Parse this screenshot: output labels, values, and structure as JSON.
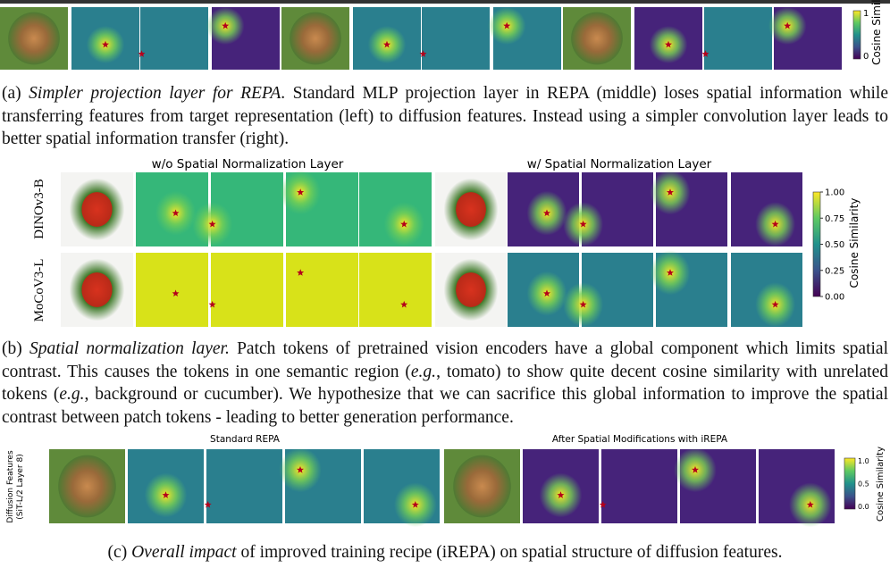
{
  "panel_a": {
    "colorbar": {
      "label": "Cosine Similar",
      "ticks": [
        "1",
        "0"
      ]
    },
    "caption": [
      "(a) ",
      "Simpler projection layer for REPA",
      ". Standard MLP projection layer in REPA (middle) loses spatial information while transferring features from target representation (left) to diffusion features.  Instead using a simpler convolution layer leads to better spatial information transfer (right)."
    ]
  },
  "panel_b": {
    "titles": [
      "w/o Spatial Normalization Layer",
      "w/ Spatial Normalization Layer"
    ],
    "rows": [
      "DINOv3-B",
      "MoCoV3-L"
    ],
    "colorbar": {
      "label": "Cosine Similarity",
      "ticks": [
        "1.00",
        "0.75",
        "0.50",
        "0.25",
        "0.00"
      ]
    },
    "caption": [
      "(b) ",
      "Spatial normalization layer.",
      " Patch tokens of pretrained vision encoders have a global component which limits spatial contrast. This causes the tokens in one semantic region (",
      "e.g.",
      ", tomato) to show quite decent cosine similarity with unrelated tokens (",
      "e.g.",
      ", background or cucumber). We hypothesize that we can sacrifice this global information to improve the spatial contrast between patch tokens - leading to better generation performance."
    ]
  },
  "panel_c": {
    "titles": [
      "Standard REPA",
      "After Spatial Modifications with iREPA"
    ],
    "side_label": [
      "Diffusion Features",
      "(SiT-L/2 Layer 8)"
    ],
    "colorbar": {
      "label": "Cosine Similarity",
      "ticks": [
        "1.0",
        "0.5",
        "0.0"
      ]
    },
    "caption": [
      "(c) ",
      "Overall impact",
      " of improved training recipe (iREPA) on spatial structure of diffusion features."
    ]
  }
}
